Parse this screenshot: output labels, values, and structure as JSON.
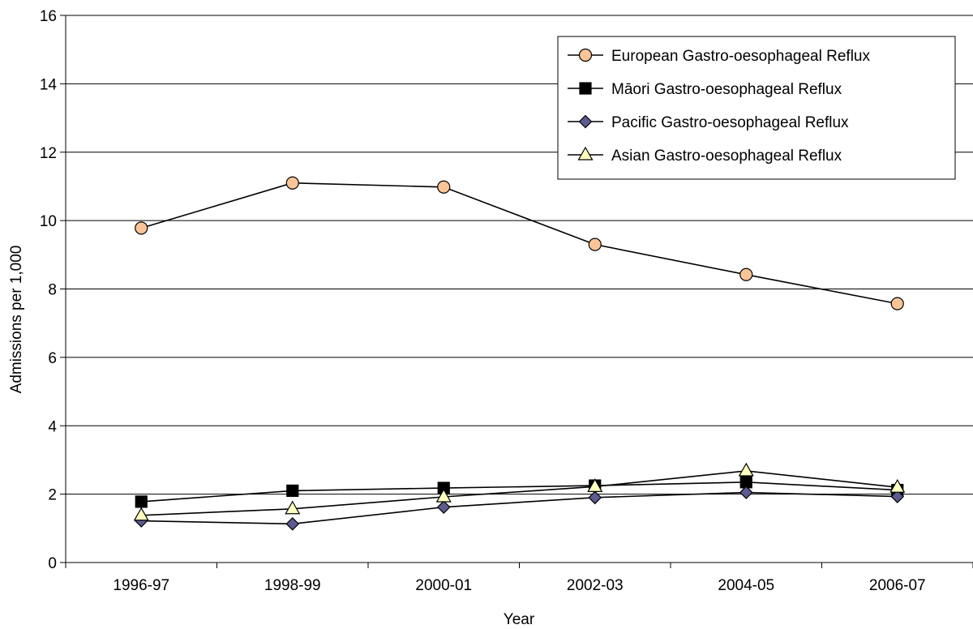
{
  "chart_data": {
    "type": "line",
    "xlabel": "Year",
    "ylabel": "Admissions per 1,000",
    "categories": [
      "1996-97",
      "1998-99",
      "2000-01",
      "2002-03",
      "2004-05",
      "2006-07"
    ],
    "ylim": [
      0,
      16
    ],
    "yticks": [
      "0",
      "2",
      "4",
      "6",
      "8",
      "10",
      "12",
      "14",
      "16"
    ],
    "grid": true,
    "legend_position": "top-right",
    "series": [
      {
        "name": "European Gastro-oesophageal Reflux",
        "marker": "circle",
        "fill": "#f9c596",
        "values": [
          9.78,
          11.1,
          10.98,
          9.3,
          8.42,
          7.57
        ]
      },
      {
        "name": "Māori Gastro-oesophageal Reflux",
        "marker": "square",
        "fill": "#000000",
        "values": [
          1.78,
          2.1,
          2.18,
          2.25,
          2.35,
          2.12
        ]
      },
      {
        "name": "Pacific Gastro-oesophageal Reflux",
        "marker": "diamond",
        "fill": "#5b5b8f",
        "values": [
          1.22,
          1.13,
          1.62,
          1.9,
          2.05,
          1.93
        ]
      },
      {
        "name": "Asian Gastro-oesophageal Reflux",
        "marker": "triangle",
        "fill": "#ffffc0",
        "values": [
          1.38,
          1.57,
          1.92,
          2.22,
          2.68,
          2.2
        ]
      }
    ]
  }
}
